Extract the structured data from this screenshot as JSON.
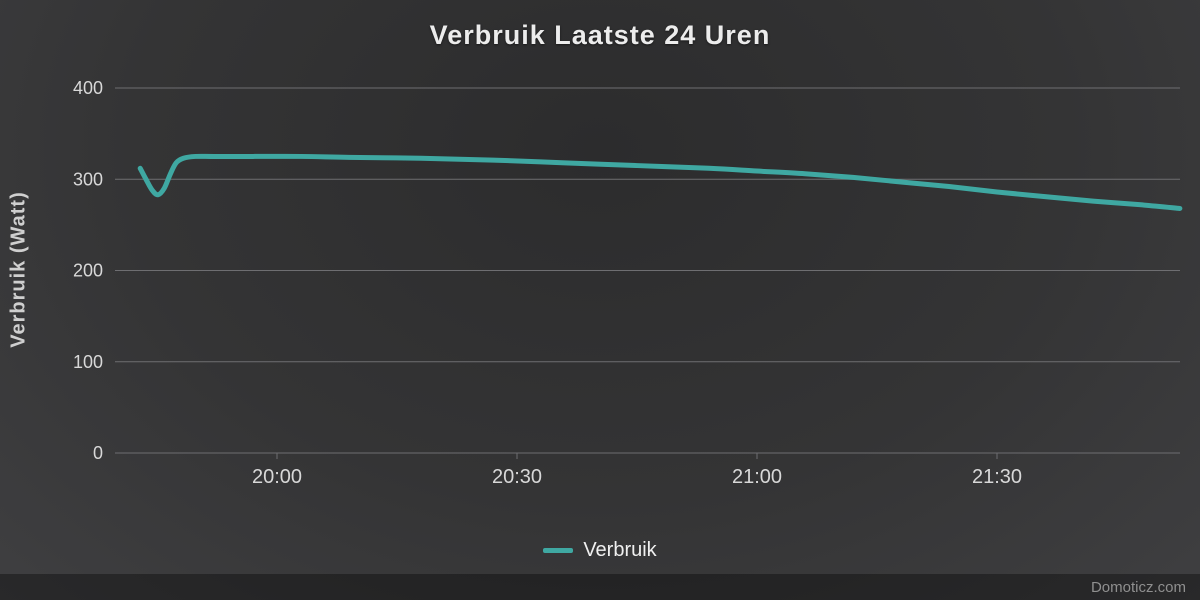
{
  "title": "Verbruik Laatste 24 Uren",
  "watermark": "Domoticz.com",
  "colors": {
    "series": "#3fa8a2",
    "grid": "#6e6e71",
    "tick_text": "#d8d8d8",
    "title_text": "#ececec",
    "legend_text": "#f0f0f0",
    "watermark_text": "#8f8f8f"
  },
  "legend": {
    "items": [
      {
        "label": "Verbruik",
        "color": "#3fa8a2"
      }
    ]
  },
  "chart_data": {
    "type": "line",
    "title": "Verbruik Laatste 24 Uren",
    "xlabel": "",
    "ylabel": "Verbruik (Watt)",
    "ylim": [
      0,
      400
    ],
    "yticks": [
      0,
      100,
      200,
      300,
      400
    ],
    "xlim_hours": [
      19.6625,
      21.88125
    ],
    "xticks": [
      {
        "hour": 20.0,
        "label": "20:00"
      },
      {
        "hour": 20.5,
        "label": "20:30"
      },
      {
        "hour": 21.0,
        "label": "21:00"
      },
      {
        "hour": 21.5,
        "label": "21:30"
      }
    ],
    "grid": true,
    "legend_position": "bottom",
    "series": [
      {
        "name": "Verbruik",
        "color": "#3fa8a2",
        "points": [
          [
            19.715,
            312
          ],
          [
            19.727,
            300
          ],
          [
            19.74,
            288
          ],
          [
            19.752,
            283
          ],
          [
            19.765,
            290
          ],
          [
            19.778,
            306
          ],
          [
            19.79,
            318
          ],
          [
            19.805,
            323
          ],
          [
            19.83,
            325
          ],
          [
            19.87,
            325
          ],
          [
            19.95,
            325
          ],
          [
            20.05,
            325
          ],
          [
            20.15,
            324
          ],
          [
            20.3,
            323
          ],
          [
            20.45,
            321
          ],
          [
            20.6,
            318
          ],
          [
            20.75,
            315
          ],
          [
            20.9,
            312
          ],
          [
            21.0,
            309
          ],
          [
            21.1,
            306
          ],
          [
            21.2,
            302
          ],
          [
            21.3,
            297
          ],
          [
            21.4,
            292
          ],
          [
            21.5,
            286
          ],
          [
            21.6,
            281
          ],
          [
            21.7,
            276
          ],
          [
            21.8,
            272
          ],
          [
            21.881,
            268
          ]
        ]
      }
    ]
  }
}
